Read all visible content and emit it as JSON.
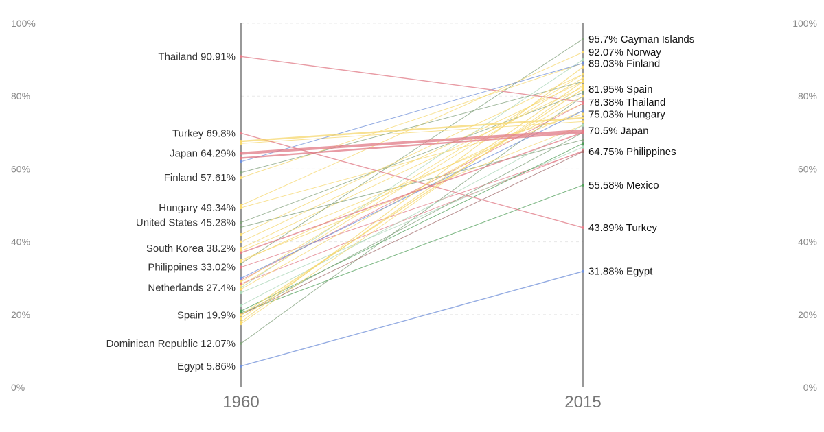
{
  "chart_data": {
    "type": "slope",
    "x": [
      "1960",
      "2015"
    ],
    "ylim": [
      0,
      100
    ],
    "y_ticks": [
      "0%",
      "20%",
      "40%",
      "60%",
      "80%",
      "100%"
    ],
    "grid": true,
    "left_labels": [
      {
        "name": "Thailand",
        "value": 90.91,
        "text": "Thailand 90.91%"
      },
      {
        "name": "Turkey",
        "value": 69.8,
        "text": "Turkey 69.8%"
      },
      {
        "name": "Japan",
        "value": 64.29,
        "text": "Japan 64.29%"
      },
      {
        "name": "Finland",
        "value": 57.61,
        "text": "Finland 57.61%"
      },
      {
        "name": "Hungary",
        "value": 49.34,
        "text": "Hungary 49.34%"
      },
      {
        "name": "United States",
        "value": 45.28,
        "text": "United States 45.28%"
      },
      {
        "name": "South Korea",
        "value": 38.2,
        "text": "South Korea 38.2%"
      },
      {
        "name": "Philippines",
        "value": 33.02,
        "text": "Philippines 33.02%"
      },
      {
        "name": "Netherlands",
        "value": 27.4,
        "text": "Netherlands 27.4%"
      },
      {
        "name": "Spain",
        "value": 19.9,
        "text": "Spain 19.9%"
      },
      {
        "name": "Dominican Republic",
        "value": 12.07,
        "text": "Dominican Republic 12.07%"
      },
      {
        "name": "Egypt",
        "value": 5.86,
        "text": "Egypt 5.86%"
      }
    ],
    "right_labels": [
      {
        "name": "Cayman Islands",
        "value": 95.7,
        "text": "95.7% Cayman Islands"
      },
      {
        "name": "Norway",
        "value": 92.07,
        "text": "92.07% Norway"
      },
      {
        "name": "Finland",
        "value": 89.03,
        "text": "89.03% Finland"
      },
      {
        "name": "Spain",
        "value": 81.95,
        "text": "81.95% Spain"
      },
      {
        "name": "Thailand",
        "value": 78.38,
        "text": "78.38% Thailand"
      },
      {
        "name": "Hungary",
        "value": 75.03,
        "text": "75.03% Hungary"
      },
      {
        "name": "Japan",
        "value": 70.5,
        "text": "70.5% Japan"
      },
      {
        "name": "Philippines",
        "value": 64.75,
        "text": "64.75% Philippines"
      },
      {
        "name": "Mexico",
        "value": 55.58,
        "text": "55.58% Mexico"
      },
      {
        "name": "Turkey",
        "value": 43.89,
        "text": "43.89% Turkey"
      },
      {
        "name": "Egypt",
        "value": 31.88,
        "text": "31.88% Egypt"
      }
    ],
    "series": [
      {
        "name": "Thailand",
        "values": [
          90.91,
          78.38
        ],
        "color": "#e07a86",
        "width": 1.4
      },
      {
        "name": "Turkey",
        "values": [
          69.8,
          43.89
        ],
        "color": "#e07a86",
        "width": 1.4
      },
      {
        "name": "Japan",
        "values": [
          64.29,
          70.5
        ],
        "color": "#e07a86",
        "width": 4
      },
      {
        "name": "Finland",
        "values": [
          57.61,
          89.03
        ],
        "color": "#f5d76e",
        "width": 1
      },
      {
        "name": "Hungary",
        "values": [
          49.34,
          75.03
        ],
        "color": "#f5d76e",
        "width": 1
      },
      {
        "name": "United States",
        "values": [
          45.28,
          81.0
        ],
        "color": "#7f9f7a",
        "width": 1
      },
      {
        "name": "South Korea",
        "values": [
          38.2,
          82.5
        ],
        "color": "#f5d76e",
        "width": 1
      },
      {
        "name": "Philippines",
        "values": [
          33.02,
          64.75
        ],
        "color": "#e07a86",
        "width": 1
      },
      {
        "name": "Netherlands",
        "values": [
          27.4,
          90.0
        ],
        "color": "#a9d6b7",
        "width": 1
      },
      {
        "name": "Spain",
        "values": [
          19.9,
          81.95
        ],
        "color": "#f5d76e",
        "width": 1.4
      },
      {
        "name": "Dominican Republic",
        "values": [
          12.07,
          80.0
        ],
        "color": "#7f9f7a",
        "width": 1
      },
      {
        "name": "Egypt",
        "values": [
          5.86,
          31.88
        ],
        "color": "#6f8fd8",
        "width": 1.4
      },
      {
        "name": "Cayman Islands",
        "values": [
          34.0,
          95.7
        ],
        "color": "#7f9f7a",
        "width": 1
      },
      {
        "name": "Norway",
        "values": [
          50.0,
          92.07
        ],
        "color": "#f5d76e",
        "width": 1
      },
      {
        "name": "Mexico",
        "values": [
          20.5,
          55.58
        ],
        "color": "#4f9d58",
        "width": 1
      },
      {
        "name": "",
        "values": [
          67.6,
          74.0
        ],
        "color": "#f5d76e",
        "width": 2.4
      },
      {
        "name": "",
        "values": [
          67.0,
          73.0
        ],
        "color": "#f5d76e",
        "width": 1
      },
      {
        "name": "",
        "values": [
          63.0,
          70.0
        ],
        "color": "#e07a86",
        "width": 2.4
      },
      {
        "name": "",
        "values": [
          62.0,
          89.0
        ],
        "color": "#6f8fd8",
        "width": 1
      },
      {
        "name": "",
        "values": [
          59.0,
          84.0
        ],
        "color": "#7f9f7a",
        "width": 1
      },
      {
        "name": "",
        "values": [
          44.0,
          68.0
        ],
        "color": "#7f9f7a",
        "width": 1
      },
      {
        "name": "",
        "values": [
          42.0,
          86.0
        ],
        "color": "#f5d76e",
        "width": 1
      },
      {
        "name": "",
        "values": [
          40.0,
          84.0
        ],
        "color": "#f5d76e",
        "width": 1
      },
      {
        "name": "",
        "values": [
          37.5,
          76.0
        ],
        "color": "#f5d76e",
        "width": 1
      },
      {
        "name": "",
        "values": [
          37.0,
          70.0
        ],
        "color": "#e07a86",
        "width": 1.6
      },
      {
        "name": "",
        "values": [
          35.0,
          72.0
        ],
        "color": "#f5d76e",
        "width": 1
      },
      {
        "name": "",
        "values": [
          34.5,
          78.0
        ],
        "color": "#f5d76e",
        "width": 1
      },
      {
        "name": "",
        "values": [
          30.0,
          76.0
        ],
        "color": "#6f8fd8",
        "width": 1.2
      },
      {
        "name": "",
        "values": [
          29.5,
          78.0
        ],
        "color": "#e07a86",
        "width": 1
      },
      {
        "name": "",
        "values": [
          29.0,
          86.0
        ],
        "color": "#f5d76e",
        "width": 1
      },
      {
        "name": "",
        "values": [
          28.0,
          85.0
        ],
        "color": "#f5d76e",
        "width": 1
      },
      {
        "name": "",
        "values": [
          28.5,
          65.0
        ],
        "color": "#e07a86",
        "width": 1
      },
      {
        "name": "",
        "values": [
          27.0,
          80.0
        ],
        "color": "#f5d76e",
        "width": 1
      },
      {
        "name": "",
        "values": [
          26.0,
          66.0
        ],
        "color": "#a9d6b7",
        "width": 1
      },
      {
        "name": "",
        "values": [
          22.5,
          72.0
        ],
        "color": "#a9d6b7",
        "width": 1
      },
      {
        "name": "",
        "values": [
          21.0,
          67.0
        ],
        "color": "#4f9d58",
        "width": 1
      },
      {
        "name": "",
        "values": [
          20.0,
          70.0
        ],
        "color": "#7f9f7a",
        "width": 1
      },
      {
        "name": "",
        "values": [
          19.0,
          84.0
        ],
        "color": "#f5d76e",
        "width": 1.2
      },
      {
        "name": "",
        "values": [
          18.0,
          88.0
        ],
        "color": "#f5d76e",
        "width": 1.2
      },
      {
        "name": "",
        "values": [
          17.5,
          83.0
        ],
        "color": "#f5d76e",
        "width": 1
      },
      {
        "name": "",
        "values": [
          20.0,
          64.75
        ],
        "color": "#a06b6b",
        "width": 1
      }
    ]
  }
}
